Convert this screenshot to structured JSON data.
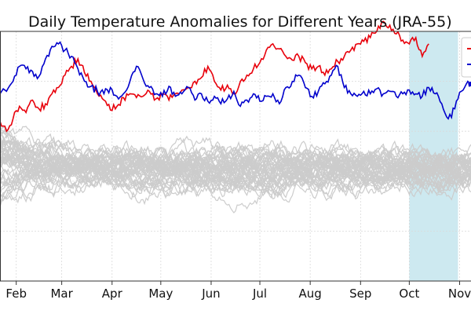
{
  "chart_data": {
    "type": "line",
    "title": "Daily Temperature Anomalies for Different Years (JRA-55)",
    "xlabel": "",
    "ylabel": "",
    "x_tick_labels": [
      "Feb",
      "Mar",
      "Apr",
      "May",
      "Jun",
      "Jul",
      "Aug",
      "Sep",
      "Oct",
      "Nov"
    ],
    "x_tick_days": [
      32,
      60,
      91,
      121,
      152,
      182,
      213,
      244,
      274,
      305
    ],
    "x_range_days": [
      22,
      312
    ],
    "y_range": [
      -1.0,
      1.0
    ],
    "grid": true,
    "legend_placement": "top-right",
    "highlight_span_days": [
      274,
      304
    ],
    "colors": {
      "highlight_span": "#cde9f0",
      "background_years": "#cccccc",
      "red_series": "#e8000b",
      "blue_series": "#0000cc",
      "grid": "#d9d9d9",
      "axes": "#333333"
    },
    "background_years": {
      "count": 45,
      "mean_anomaly_approx": -0.1,
      "spread_approx": 0.2
    },
    "series": [
      {
        "color": "#e8000b",
        "x": [
          22,
          26,
          30,
          34,
          38,
          42,
          46,
          50,
          54,
          58,
          62,
          66,
          70,
          74,
          78,
          82,
          86,
          90,
          94,
          98,
          102,
          106,
          110,
          114,
          118,
          122,
          126,
          130,
          134,
          138,
          142,
          146,
          150,
          154,
          158,
          162,
          166,
          170,
          174,
          178,
          182,
          186,
          190,
          194,
          198,
          202,
          206,
          210,
          214,
          218,
          222,
          226,
          230,
          234,
          238,
          242,
          246,
          250,
          254,
          258,
          262,
          266,
          270,
          274,
          278,
          282,
          286
        ],
        "y": [
          0.28,
          0.2,
          0.3,
          0.4,
          0.35,
          0.45,
          0.38,
          0.42,
          0.5,
          0.55,
          0.65,
          0.72,
          0.78,
          0.67,
          0.6,
          0.5,
          0.45,
          0.37,
          0.4,
          0.47,
          0.5,
          0.47,
          0.48,
          0.52,
          0.46,
          0.5,
          0.45,
          0.5,
          0.53,
          0.55,
          0.6,
          0.63,
          0.72,
          0.6,
          0.53,
          0.57,
          0.5,
          0.6,
          0.65,
          0.7,
          0.75,
          0.85,
          0.9,
          0.86,
          0.8,
          0.77,
          0.8,
          0.75,
          0.7,
          0.72,
          0.65,
          0.7,
          0.76,
          0.8,
          0.85,
          0.9,
          0.92,
          0.95,
          1.0,
          1.08,
          1.05,
          0.98,
          0.93,
          0.9,
          0.95,
          0.8,
          0.9
        ]
      },
      {
        "color": "#0000cc",
        "x": [
          22,
          26,
          30,
          34,
          38,
          42,
          46,
          50,
          54,
          58,
          62,
          66,
          70,
          74,
          78,
          82,
          86,
          90,
          94,
          98,
          102,
          106,
          110,
          114,
          118,
          122,
          126,
          130,
          134,
          138,
          142,
          146,
          150,
          154,
          158,
          162,
          166,
          170,
          174,
          178,
          182,
          186,
          190,
          194,
          198,
          202,
          206,
          210,
          214,
          218,
          222,
          226,
          230,
          234,
          238,
          242,
          246,
          250,
          254,
          258,
          262,
          266,
          270,
          274,
          278,
          282,
          286,
          290,
          294,
          298,
          302,
          306,
          310,
          312
        ],
        "y": [
          0.5,
          0.52,
          0.6,
          0.72,
          0.7,
          0.68,
          0.64,
          0.78,
          0.88,
          0.9,
          0.85,
          0.8,
          0.7,
          0.6,
          0.56,
          0.52,
          0.5,
          0.55,
          0.48,
          0.5,
          0.6,
          0.72,
          0.62,
          0.55,
          0.5,
          0.48,
          0.56,
          0.48,
          0.5,
          0.55,
          0.45,
          0.5,
          0.44,
          0.48,
          0.42,
          0.46,
          0.52,
          0.4,
          0.45,
          0.5,
          0.44,
          0.48,
          0.5,
          0.42,
          0.55,
          0.6,
          0.65,
          0.55,
          0.48,
          0.52,
          0.58,
          0.65,
          0.72,
          0.55,
          0.5,
          0.48,
          0.52,
          0.5,
          0.54,
          0.5,
          0.52,
          0.48,
          0.5,
          0.53,
          0.5,
          0.48,
          0.55,
          0.5,
          0.42,
          0.3,
          0.38,
          0.52,
          0.6,
          0.56
        ]
      }
    ]
  }
}
